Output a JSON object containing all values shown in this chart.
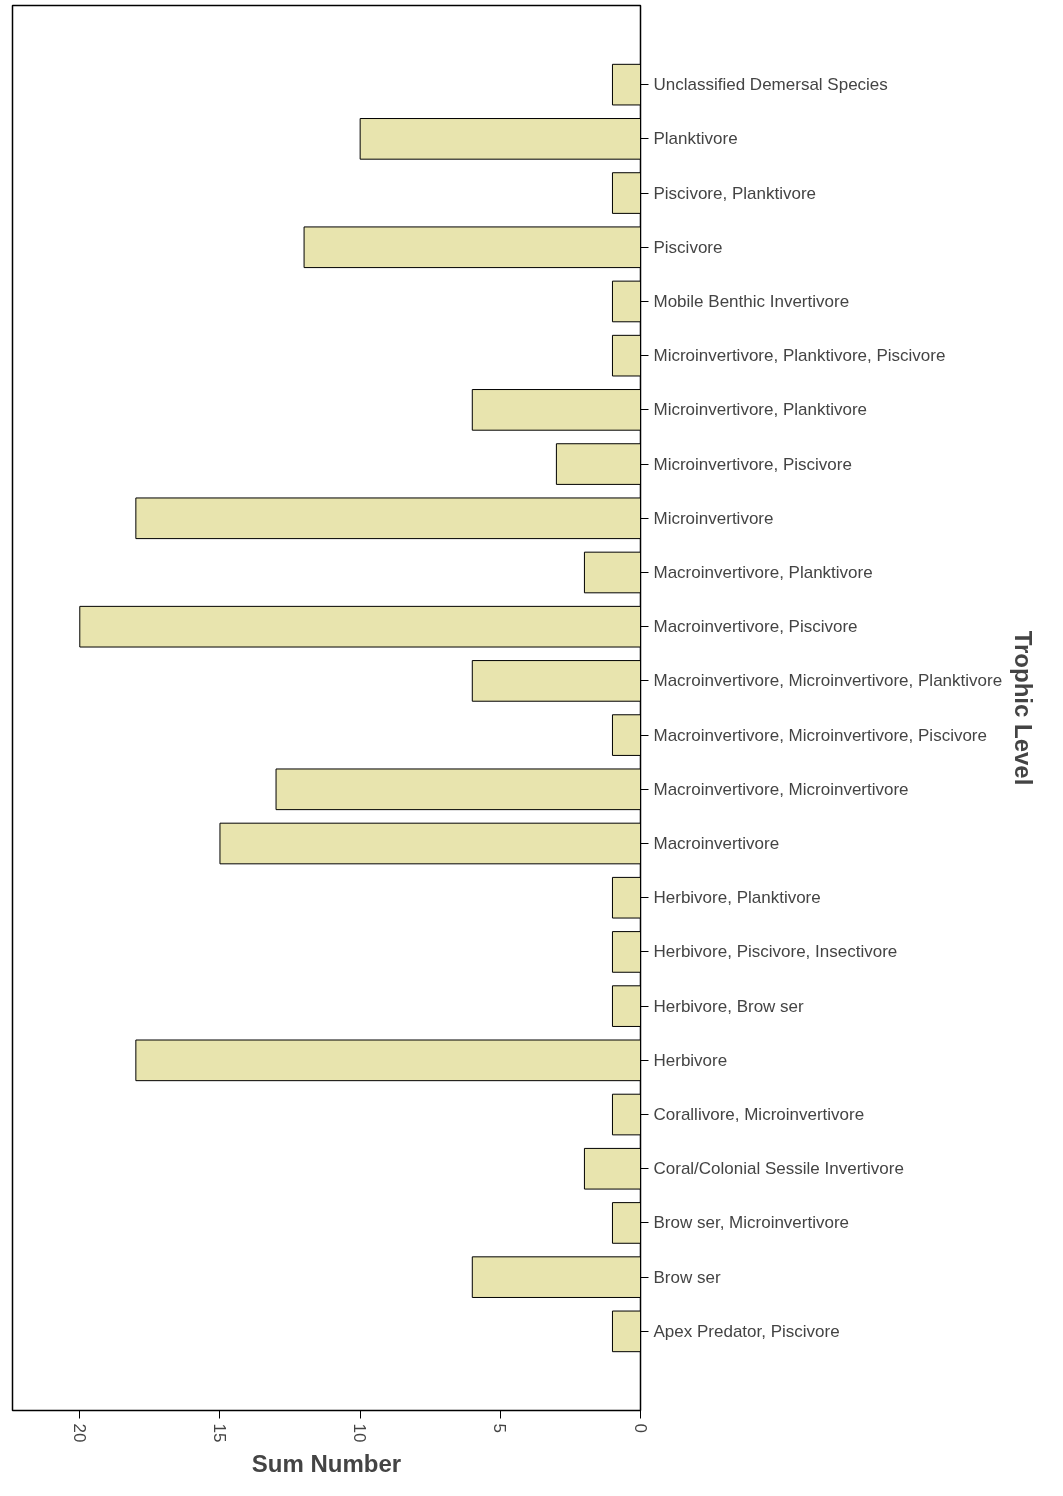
{
  "chart_data": {
    "type": "bar",
    "orientation": "horizontal",
    "xlabel": "Sum Number",
    "ylabel": "Trophic Level",
    "categories": [
      "Unclassified Demersal Species",
      "Planktivore",
      "Piscivore, Planktivore",
      "Piscivore",
      "Mobile Benthic Invertivore",
      "Microinvertivore, Planktivore, Piscivore",
      "Microinvertivore, Planktivore",
      "Microinvertivore, Piscivore",
      "Microinvertivore",
      "Macroinvertivore, Planktivore",
      "Macroinvertivore, Piscivore",
      "Macroinvertivore, Microinvertivore, Planktivore",
      "Macroinvertivore, Microinvertivore, Piscivore",
      "Macroinvertivore, Microinvertivore",
      "Macroinvertivore",
      "Herbivore, Planktivore",
      "Herbivore, Piscivore, Insectivore",
      "Herbivore, Brow ser",
      "Herbivore",
      "Corallivore, Microinvertivore",
      "Coral/Colonial Sessile Invertivore",
      "Brow ser, Microinvertivore",
      "Brow ser",
      "Apex Predator, Piscivore"
    ],
    "values": [
      1,
      10,
      1,
      12,
      1,
      1,
      6,
      3,
      18,
      2,
      20,
      6,
      1,
      13,
      15,
      1,
      1,
      1,
      18,
      1,
      2,
      1,
      6,
      1
    ],
    "color": "#e8e4ae",
    "xlim": [
      22.4,
      0
    ],
    "xticks": [
      0,
      5,
      10,
      15,
      20
    ],
    "grid": false
  }
}
